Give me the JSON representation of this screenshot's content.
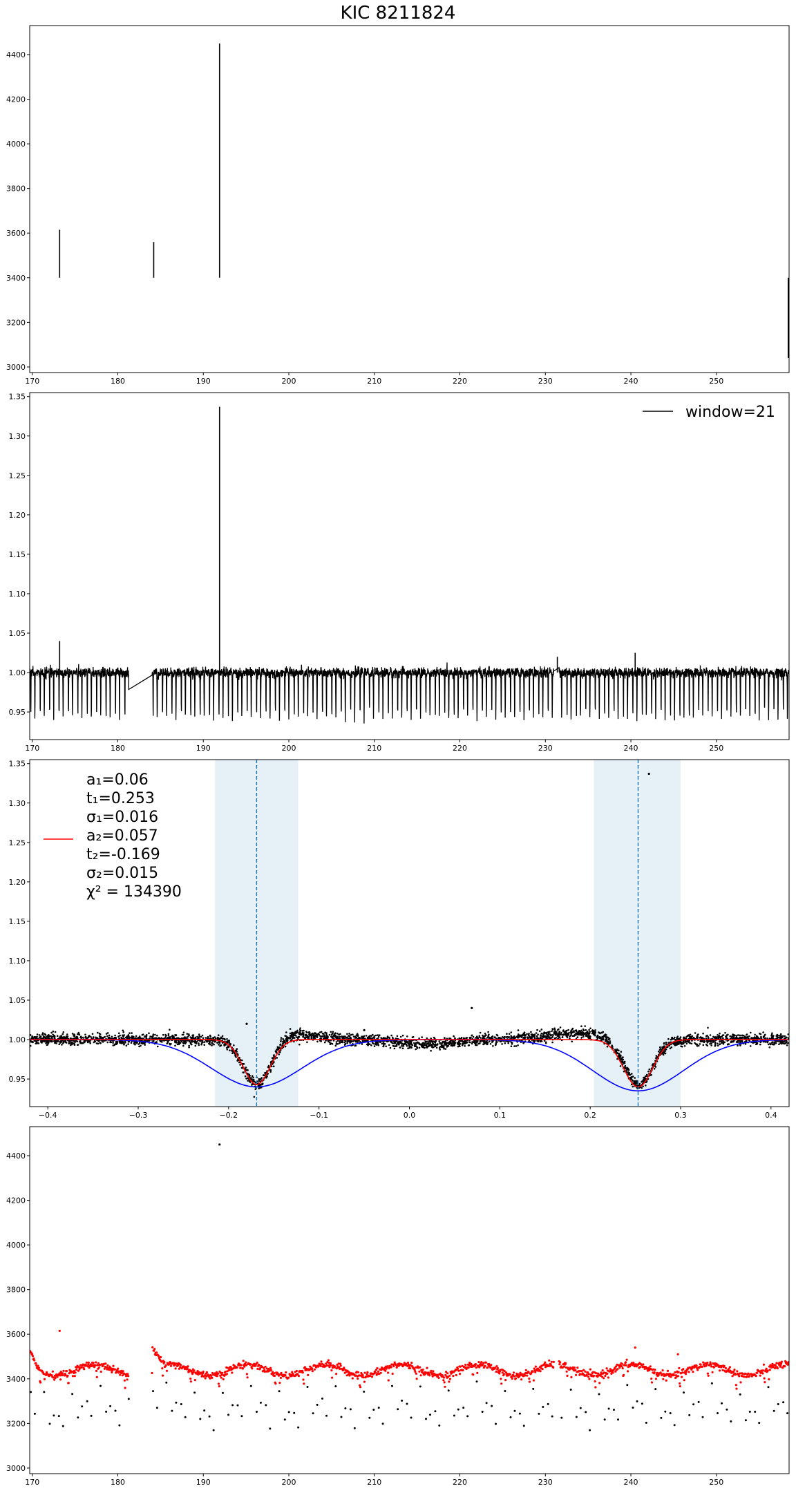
{
  "figure": {
    "title": "KIC 8211824"
  },
  "chart_data": [
    {
      "type": "line",
      "panel": 1,
      "title": "KIC 8211824",
      "xlabel": "",
      "ylabel": "",
      "xlim": [
        169.7,
        258.5
      ],
      "ylim": [
        2975,
        4530
      ],
      "xticks": [
        170,
        180,
        190,
        200,
        210,
        220,
        230,
        240,
        250
      ],
      "yticks": [
        3000,
        3200,
        3400,
        3600,
        3800,
        4000,
        4200,
        4400
      ],
      "grid": false,
      "series": [
        {
          "color": "#000000",
          "period": 1.1,
          "baseline": 3400,
          "segments": [
            {
              "x": [
                169.7,
                181.3
              ],
              "high": 3450,
              "low": 3240
            },
            {
              "x": [
                184.0,
                231.0
              ],
              "high": 3440,
              "low": 3190
            },
            {
              "x": [
                231.6,
                258.5
              ],
              "high": 3460,
              "low": 3170
            }
          ],
          "features": [
            {
              "x": 173.2,
              "y": 3615,
              "label": "spike"
            },
            {
              "x": 184.2,
              "y": 3560,
              "label": "bump"
            },
            {
              "x": 191.9,
              "y": 4450,
              "label": "spike"
            },
            {
              "x": 258.4,
              "y": 3040,
              "label": "dip"
            }
          ]
        }
      ]
    },
    {
      "type": "line",
      "panel": 2,
      "xlabel": "",
      "ylabel": "",
      "xlim": [
        169.7,
        258.5
      ],
      "ylim": [
        0.915,
        1.355
      ],
      "xticks": [
        170,
        180,
        190,
        200,
        210,
        220,
        230,
        240,
        250
      ],
      "yticks": [
        0.95,
        1.0,
        1.05,
        1.1,
        1.15,
        1.2,
        1.25,
        1.3,
        1.35
      ],
      "ytick_labels": [
        "0.95",
        "1.00",
        "1.05",
        "1.10",
        "1.15",
        "1.20",
        "1.25",
        "1.30",
        "1.35"
      ],
      "grid": false,
      "legend": {
        "position": "top-right",
        "entries": [
          {
            "label": "window=21",
            "color": "#000000"
          }
        ]
      },
      "series": [
        {
          "name": "window=21",
          "color": "#000000",
          "period": 1.1,
          "baseline": 1.0,
          "eclipse_depth": 0.06,
          "segments": [
            [
              169.7,
              181.3
            ],
            [
              184.0,
              231.0
            ],
            [
              231.6,
              258.5
            ]
          ],
          "features": [
            {
              "x": 173.2,
              "y": 1.04
            },
            {
              "x": 191.9,
              "y": 1.337
            },
            {
              "x": 231.4,
              "y": 1.02
            },
            {
              "x": 240.5,
              "y": 1.025
            }
          ]
        }
      ]
    },
    {
      "type": "scatter",
      "panel": 3,
      "xlabel": "",
      "ylabel": "",
      "xlim": [
        -0.42,
        0.42
      ],
      "ylim": [
        0.915,
        1.355
      ],
      "xticks": [
        -0.4,
        -0.3,
        -0.2,
        -0.1,
        0.0,
        0.1,
        0.2,
        0.3,
        0.4
      ],
      "xtick_labels": [
        "−0.4",
        "−0.3",
        "−0.2",
        "−0.1",
        "0.0",
        "0.1",
        "0.2",
        "0.3",
        "0.4"
      ],
      "yticks": [
        0.95,
        1.0,
        1.05,
        1.1,
        1.15,
        1.2,
        1.25,
        1.3,
        1.35
      ],
      "ytick_labels": [
        "0.95",
        "1.00",
        "1.05",
        "1.10",
        "1.15",
        "1.20",
        "1.25",
        "1.30",
        "1.35"
      ],
      "grid": false,
      "fit_params": {
        "a1": 0.06,
        "t1": 0.253,
        "sigma1": 0.016,
        "a2": 0.057,
        "t2": -0.169,
        "sigma2": 0.015,
        "chi2": 134390
      },
      "legend": {
        "position": "top-left",
        "lines": [
          "a₁=0.06",
          "t₁=0.253",
          "σ₁=0.016",
          "a₂=0.057",
          "t₂=-0.169",
          "σ₂=0.015",
          "χ² = 134390"
        ]
      },
      "shaded_regions": [
        [
          -0.215,
          -0.123
        ],
        [
          0.204,
          0.3
        ]
      ],
      "vlines": [
        -0.169,
        0.253
      ],
      "series": [
        {
          "kind": "points",
          "color": "#000000"
        },
        {
          "kind": "model",
          "color": "#ff0000"
        },
        {
          "kind": "wide-model",
          "color": "#0000ff",
          "depth1": 0.065,
          "sigma": 0.05
        }
      ],
      "outliers": [
        {
          "x": 0.265,
          "y": 1.337
        },
        {
          "x": 0.069,
          "y": 1.04
        },
        {
          "x": -0.18,
          "y": 1.02
        },
        {
          "x": -0.05,
          "y": 1.012
        }
      ]
    },
    {
      "type": "scatter",
      "panel": 4,
      "xlabel": "",
      "ylabel": "",
      "xlim": [
        169.7,
        258.5
      ],
      "ylim": [
        2975,
        4530
      ],
      "xticks": [
        170,
        180,
        190,
        200,
        210,
        220,
        230,
        240,
        250
      ],
      "yticks": [
        3000,
        3200,
        3400,
        3600,
        3800,
        4000,
        4200,
        4400
      ],
      "grid": false,
      "series": [
        {
          "kind": "all-points",
          "color": "#000000"
        },
        {
          "kind": "out-of-eclipse",
          "color": "#ff0000"
        }
      ],
      "features": [
        {
          "x": 173.2,
          "y": 3615
        },
        {
          "x": 191.9,
          "y": 4450
        },
        {
          "x": 240.5,
          "y": 3540
        },
        {
          "x": 245.5,
          "y": 3510
        }
      ]
    }
  ]
}
